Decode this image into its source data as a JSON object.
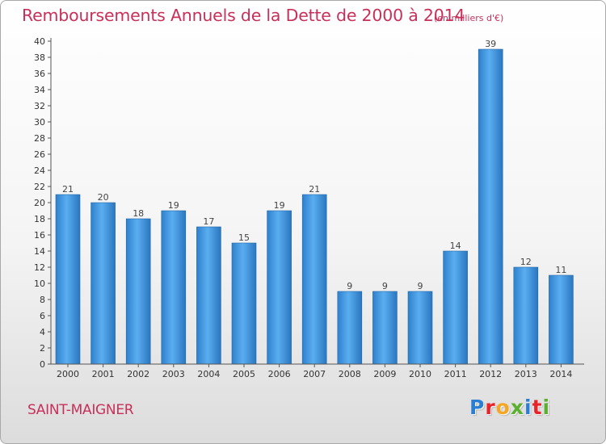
{
  "chart_data": {
    "type": "bar",
    "title": "Remboursements Annuels de la Dette de 2000 à 2014",
    "subtitle": "(en milliers d'€)",
    "xlabel": "",
    "ylabel": "",
    "categories": [
      "2000",
      "2001",
      "2002",
      "2003",
      "2004",
      "2005",
      "2006",
      "2007",
      "2008",
      "2009",
      "2010",
      "2011",
      "2012",
      "2013",
      "2014"
    ],
    "values": [
      21,
      20,
      18,
      19,
      17,
      15,
      19,
      21,
      9,
      9,
      9,
      14,
      39,
      12,
      11
    ],
    "ylim": [
      0,
      40
    ],
    "yticks": [
      0,
      2,
      4,
      6,
      8,
      10,
      12,
      14,
      16,
      18,
      20,
      22,
      24,
      26,
      28,
      30,
      32,
      34,
      36,
      38,
      40
    ],
    "grid": false,
    "bar_color": "#3a8fd8",
    "data_labels": true
  },
  "footer": {
    "commune": "SAINT-MAIGNER",
    "logo_letters": [
      "P",
      "r",
      "o",
      "x",
      "i",
      "t",
      "i"
    ]
  },
  "colors": {
    "title": "#c8305a",
    "axis": "#444444",
    "logo": [
      "#2a7fd4",
      "#e8232a",
      "#f5a623",
      "#5bb030",
      "#2a7fd4",
      "#e8232a",
      "#5bb030"
    ]
  }
}
